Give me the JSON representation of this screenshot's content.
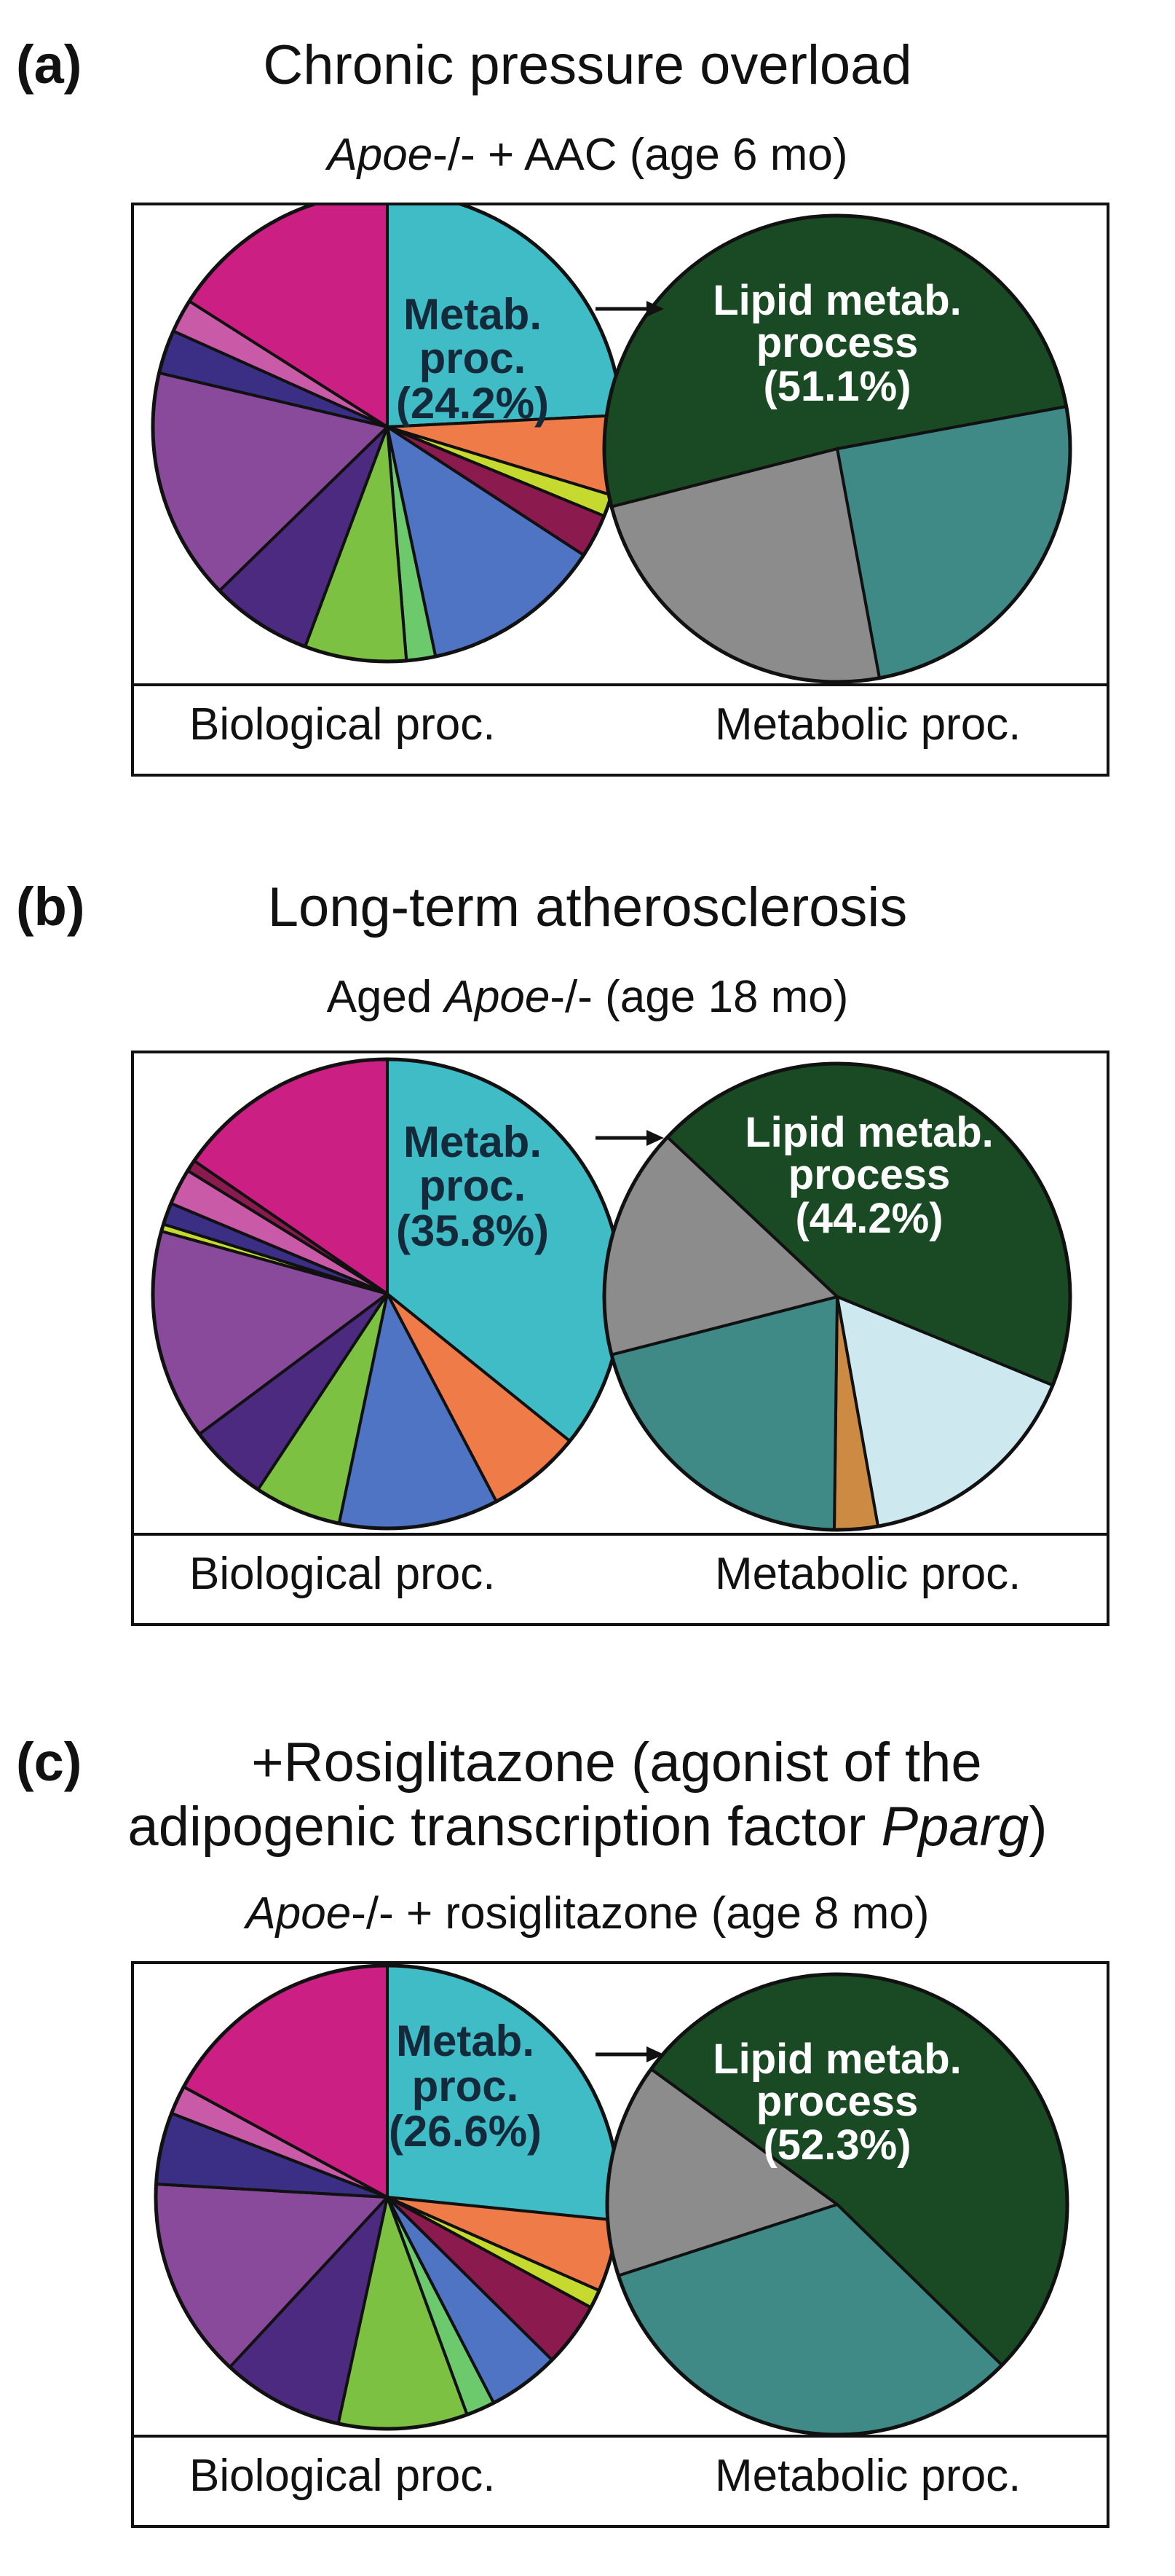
{
  "panels": [
    {
      "letter": "(a)",
      "title_lines": [
        "Chronic pressure overload"
      ],
      "subtitle": {
        "italic": "Apoe",
        "rest": "-/- + AAC (age 6 mo)",
        "italic_first": true
      },
      "left_caption": "Biological proc.",
      "right_caption": "Metabolic proc.",
      "left_label": [
        "Metab.",
        "proc.",
        "(24.2%)"
      ],
      "right_label": [
        "Lipid metab.",
        "process",
        "(51.1%)"
      ]
    },
    {
      "letter": "(b)",
      "title_lines": [
        "Long-term atherosclerosis"
      ],
      "subtitle": {
        "pre": "Aged ",
        "italic": "Apoe",
        "rest": "-/- (age 18 mo)",
        "italic_first": false
      },
      "left_caption": "Biological proc.",
      "right_caption": "Metabolic proc.",
      "left_label": [
        "Metab.",
        "proc.",
        "(35.8%)"
      ],
      "right_label": [
        "Lipid metab.",
        "process",
        "(44.2%)"
      ]
    },
    {
      "letter": "(c)",
      "title_lines": [
        "+Rosiglitazone (agonist of the",
        "adipogenic transcription factor ",
        "Pparg",
        ")"
      ],
      "subtitle": {
        "italic": "Apoe",
        "rest": "-/- + rosiglitazone (age 8 mo)",
        "italic_first": true
      },
      "left_caption": "Biological proc.",
      "right_caption": "Metabolic proc.",
      "left_label": [
        "Metab.",
        "proc.",
        "(26.6%)"
      ],
      "right_label": [
        "Lipid metab.",
        "process",
        "(52.3%)"
      ]
    }
  ],
  "chart_data": [
    {
      "type": "pie",
      "panel": "a",
      "title": "Biological proc.",
      "highlighted": "Metab. proc.",
      "slices": [
        {
          "label": "Metab. proc.",
          "percent": 24.2,
          "color": "#3fbcc6"
        },
        {
          "label": "",
          "percent": 5.5,
          "color": "#ee7b48"
        },
        {
          "label": "",
          "percent": 1.5,
          "color": "#c6d92e"
        },
        {
          "label": "",
          "percent": 3.0,
          "color": "#8b1a4e"
        },
        {
          "label": "",
          "percent": 12.5,
          "color": "#4f74c4"
        },
        {
          "label": "",
          "percent": 2.0,
          "color": "#6cc96c"
        },
        {
          "label": "",
          "percent": 7.0,
          "color": "#7dc143"
        },
        {
          "label": "",
          "percent": 7.0,
          "color": "#4b2a80"
        },
        {
          "label": "",
          "percent": 16.0,
          "color": "#8a4a9c"
        },
        {
          "label": "",
          "percent": 3.0,
          "color": "#3a2f84"
        },
        {
          "label": "",
          "percent": 2.3,
          "color": "#c95aa8"
        },
        {
          "label": "",
          "percent": 16.0,
          "color": "#cc1f84"
        }
      ]
    },
    {
      "type": "pie",
      "panel": "a",
      "title": "Metabolic proc.",
      "highlighted": "Lipid metab. process",
      "start_percent": 71.0,
      "slices": [
        {
          "label": "Lipid metab. process",
          "percent": 51.1,
          "color": "#1a4a24"
        },
        {
          "label": "",
          "percent": 25.0,
          "color": "#3f8a87"
        },
        {
          "label": "",
          "percent": 23.9,
          "color": "#8c8c8c"
        }
      ]
    },
    {
      "type": "pie",
      "panel": "b",
      "title": "Biological proc.",
      "highlighted": "Metab. proc.",
      "slices": [
        {
          "label": "Metab. proc.",
          "percent": 35.8,
          "color": "#3fbcc6"
        },
        {
          "label": "",
          "percent": 6.5,
          "color": "#ee7b48"
        },
        {
          "label": "",
          "percent": 11.0,
          "color": "#4f74c4"
        },
        {
          "label": "",
          "percent": 6.0,
          "color": "#7dc143"
        },
        {
          "label": "",
          "percent": 5.5,
          "color": "#4b2a80"
        },
        {
          "label": "",
          "percent": 14.5,
          "color": "#8a4a9c"
        },
        {
          "label": "",
          "percent": 0.5,
          "color": "#c6d92e"
        },
        {
          "label": "",
          "percent": 1.5,
          "color": "#3a2f84"
        },
        {
          "label": "",
          "percent": 2.5,
          "color": "#c95aa8"
        },
        {
          "label": "",
          "percent": 0.8,
          "color": "#8b1a4e"
        },
        {
          "label": "",
          "percent": 15.4,
          "color": "#cc1f84"
        }
      ]
    },
    {
      "type": "pie",
      "panel": "b",
      "title": "Metabolic proc.",
      "highlighted": "Lipid metab. process",
      "start_percent": 87.0,
      "slices": [
        {
          "label": "Lipid metab. process",
          "percent": 44.2,
          "color": "#1a4a24"
        },
        {
          "label": "",
          "percent": 16.0,
          "color": "#cde8ef"
        },
        {
          "label": "",
          "percent": 3.0,
          "color": "#cc8a42"
        },
        {
          "label": "",
          "percent": 20.8,
          "color": "#3f8a87"
        },
        {
          "label": "",
          "percent": 16.0,
          "color": "#8c8c8c"
        }
      ]
    },
    {
      "type": "pie",
      "panel": "c",
      "title": "Biological proc.",
      "highlighted": "Metab. proc.",
      "slices": [
        {
          "label": "Metab. proc.",
          "percent": 26.6,
          "color": "#3fbcc6"
        },
        {
          "label": "",
          "percent": 5.0,
          "color": "#ee7b48"
        },
        {
          "label": "",
          "percent": 1.3,
          "color": "#c6d92e"
        },
        {
          "label": "",
          "percent": 4.5,
          "color": "#8b1a4e"
        },
        {
          "label": "",
          "percent": 5.0,
          "color": "#4f74c4"
        },
        {
          "label": "",
          "percent": 2.0,
          "color": "#6cc96c"
        },
        {
          "label": "",
          "percent": 9.0,
          "color": "#7dc143"
        },
        {
          "label": "",
          "percent": 8.5,
          "color": "#4b2a80"
        },
        {
          "label": "",
          "percent": 14.0,
          "color": "#8a4a9c"
        },
        {
          "label": "",
          "percent": 5.0,
          "color": "#3a2f84"
        },
        {
          "label": "",
          "percent": 2.0,
          "color": "#c95aa8"
        },
        {
          "label": "",
          "percent": 17.1,
          "color": "#cc1f84"
        }
      ]
    },
    {
      "type": "pie",
      "panel": "c",
      "title": "Metabolic proc.",
      "highlighted": "Lipid metab. process",
      "start_percent": 85.0,
      "slices": [
        {
          "label": "Lipid metab. process",
          "percent": 52.3,
          "color": "#1a4a24"
        },
        {
          "label": "",
          "percent": 32.7,
          "color": "#3f8a87"
        },
        {
          "label": "",
          "percent": 15.0,
          "color": "#8c8c8c"
        }
      ]
    }
  ]
}
